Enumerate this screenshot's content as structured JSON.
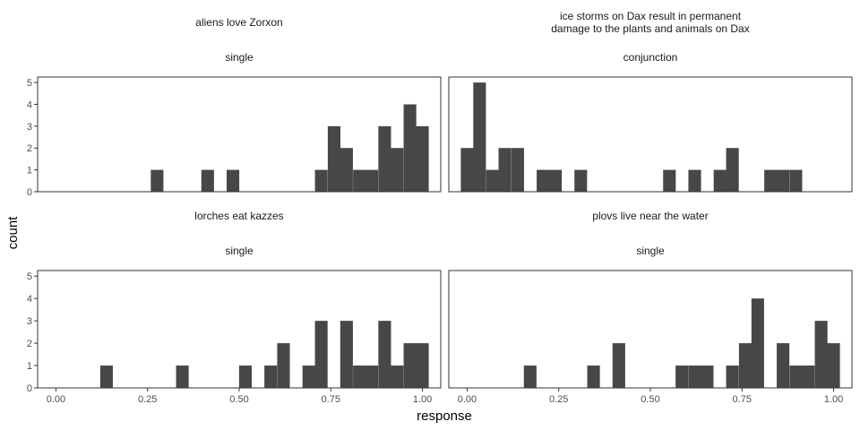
{
  "chart_data": {
    "type": "histogram-facets",
    "x_label": "response",
    "y_label": "count",
    "x_ticks": [
      "0.00",
      "0.25",
      "0.50",
      "0.75",
      "1.00"
    ],
    "x_tick_values": [
      0,
      0.25,
      0.5,
      0.75,
      1.0
    ],
    "y_ticks": [
      "0",
      "1",
      "2",
      "3",
      "4",
      "5"
    ],
    "xlim": [
      -0.05,
      1.05
    ],
    "ylim": [
      0,
      5.25
    ],
    "bin_width": 0.0345,
    "bar_color": "#474747",
    "panels": [
      {
        "title": "aliens love Zorxon",
        "subtitle": "single",
        "bins": [
          {
            "x": 0.276,
            "count": 1
          },
          {
            "x": 0.414,
            "count": 1
          },
          {
            "x": 0.483,
            "count": 1
          },
          {
            "x": 0.724,
            "count": 1
          },
          {
            "x": 0.759,
            "count": 3
          },
          {
            "x": 0.793,
            "count": 2
          },
          {
            "x": 0.828,
            "count": 1
          },
          {
            "x": 0.862,
            "count": 1
          },
          {
            "x": 0.897,
            "count": 3
          },
          {
            "x": 0.931,
            "count": 2
          },
          {
            "x": 0.966,
            "count": 4
          },
          {
            "x": 1.0,
            "count": 3
          }
        ]
      },
      {
        "title": "ice storms on Dax result in permanent\ndamage to the plants and animals on Dax",
        "subtitle": "conjunction",
        "bins": [
          {
            "x": 0.0,
            "count": 2
          },
          {
            "x": 0.034,
            "count": 5
          },
          {
            "x": 0.069,
            "count": 1
          },
          {
            "x": 0.103,
            "count": 2
          },
          {
            "x": 0.138,
            "count": 2
          },
          {
            "x": 0.207,
            "count": 1
          },
          {
            "x": 0.241,
            "count": 1
          },
          {
            "x": 0.31,
            "count": 1
          },
          {
            "x": 0.552,
            "count": 1
          },
          {
            "x": 0.621,
            "count": 1
          },
          {
            "x": 0.69,
            "count": 1
          },
          {
            "x": 0.724,
            "count": 2
          },
          {
            "x": 0.828,
            "count": 1
          },
          {
            "x": 0.862,
            "count": 1
          },
          {
            "x": 0.897,
            "count": 1
          }
        ]
      },
      {
        "title": "lorches eat kazzes",
        "subtitle": "single",
        "bins": [
          {
            "x": 0.138,
            "count": 1
          },
          {
            "x": 0.345,
            "count": 1
          },
          {
            "x": 0.517,
            "count": 1
          },
          {
            "x": 0.586,
            "count": 1
          },
          {
            "x": 0.621,
            "count": 2
          },
          {
            "x": 0.69,
            "count": 1
          },
          {
            "x": 0.724,
            "count": 3
          },
          {
            "x": 0.793,
            "count": 3
          },
          {
            "x": 0.828,
            "count": 1
          },
          {
            "x": 0.862,
            "count": 1
          },
          {
            "x": 0.897,
            "count": 3
          },
          {
            "x": 0.931,
            "count": 1
          },
          {
            "x": 0.966,
            "count": 2
          },
          {
            "x": 1.0,
            "count": 2
          }
        ]
      },
      {
        "title": "plovs live near the water",
        "subtitle": "single",
        "bins": [
          {
            "x": 0.172,
            "count": 1
          },
          {
            "x": 0.345,
            "count": 1
          },
          {
            "x": 0.414,
            "count": 2
          },
          {
            "x": 0.586,
            "count": 1
          },
          {
            "x": 0.621,
            "count": 1
          },
          {
            "x": 0.655,
            "count": 1
          },
          {
            "x": 0.724,
            "count": 1
          },
          {
            "x": 0.759,
            "count": 2
          },
          {
            "x": 0.793,
            "count": 4
          },
          {
            "x": 0.862,
            "count": 2
          },
          {
            "x": 0.897,
            "count": 1
          },
          {
            "x": 0.931,
            "count": 1
          },
          {
            "x": 0.966,
            "count": 3
          },
          {
            "x": 1.0,
            "count": 2
          }
        ]
      }
    ]
  }
}
